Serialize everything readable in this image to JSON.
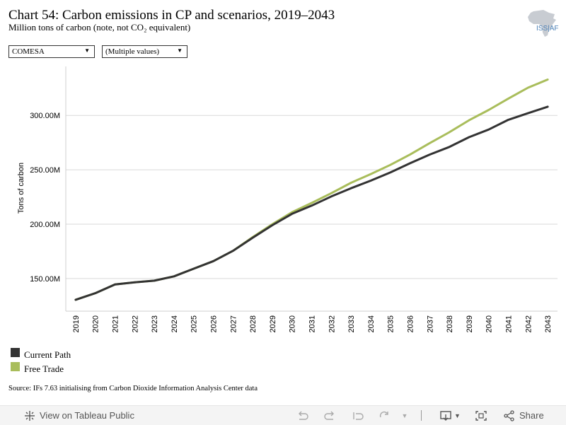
{
  "header": {
    "title": "Chart 54: Carbon emissions in CP and scenarios, 2019–2043",
    "subtitle": "Million tons of carbon (note, not CO₂ equivalent)",
    "logo_text": "ISS|AF"
  },
  "filters": {
    "region": "COMESA",
    "scenario": "(Multiple values)"
  },
  "chart_data": {
    "type": "line",
    "title": "Chart 54: Carbon emissions in CP and scenarios, 2019–2043",
    "subtitle": "Million tons of carbon (note, not CO₂ equivalent)",
    "xlabel": "",
    "ylabel": "Tons of carbon",
    "x": [
      "2019",
      "2020",
      "2021",
      "2022",
      "2023",
      "2024",
      "2025",
      "2026",
      "2027",
      "2028",
      "2029",
      "2030",
      "2031",
      "2032",
      "2033",
      "2034",
      "2035",
      "2036",
      "2037",
      "2038",
      "2039",
      "2040",
      "2041",
      "2042",
      "2043"
    ],
    "yticks": [
      150,
      200,
      250,
      300
    ],
    "ytick_labels": [
      "150.00M",
      "200.00M",
      "250.00M",
      "300.00M"
    ],
    "ylim": [
      120,
      345
    ],
    "grid": "horizontal",
    "legend_position": "bottom-left",
    "series": [
      {
        "name": "Current Path",
        "color": "#333333",
        "values": [
          130.5,
          136.5,
          144.5,
          146.5,
          148.0,
          152.0,
          159.0,
          166.0,
          175.5,
          187.5,
          199.0,
          209.5,
          217.0,
          225.5,
          233.0,
          240.0,
          247.5,
          256.0,
          264.0,
          271.0,
          280.0,
          287.0,
          296.0,
          302.0,
          308.0
        ]
      },
      {
        "name": "Free Trade",
        "color": "#a9bd5b",
        "values": [
          130.5,
          136.5,
          144.5,
          146.5,
          148.0,
          152.0,
          159.0,
          166.0,
          175.5,
          188.0,
          200.0,
          211.0,
          219.5,
          228.5,
          238.0,
          246.0,
          254.5,
          264.0,
          274.5,
          284.5,
          295.5,
          305.0,
          315.5,
          325.5,
          333.0
        ]
      }
    ]
  },
  "legend": {
    "items": [
      {
        "label": "Current Path",
        "color": "#333333"
      },
      {
        "label": "Free Trade",
        "color": "#a9bd5b"
      }
    ]
  },
  "source": "Source: IFs 7.63 initialising from Carbon Dioxide Information Analysis Center data",
  "toolbar": {
    "view_label": "View on Tableau Public",
    "share_label": "Share"
  }
}
